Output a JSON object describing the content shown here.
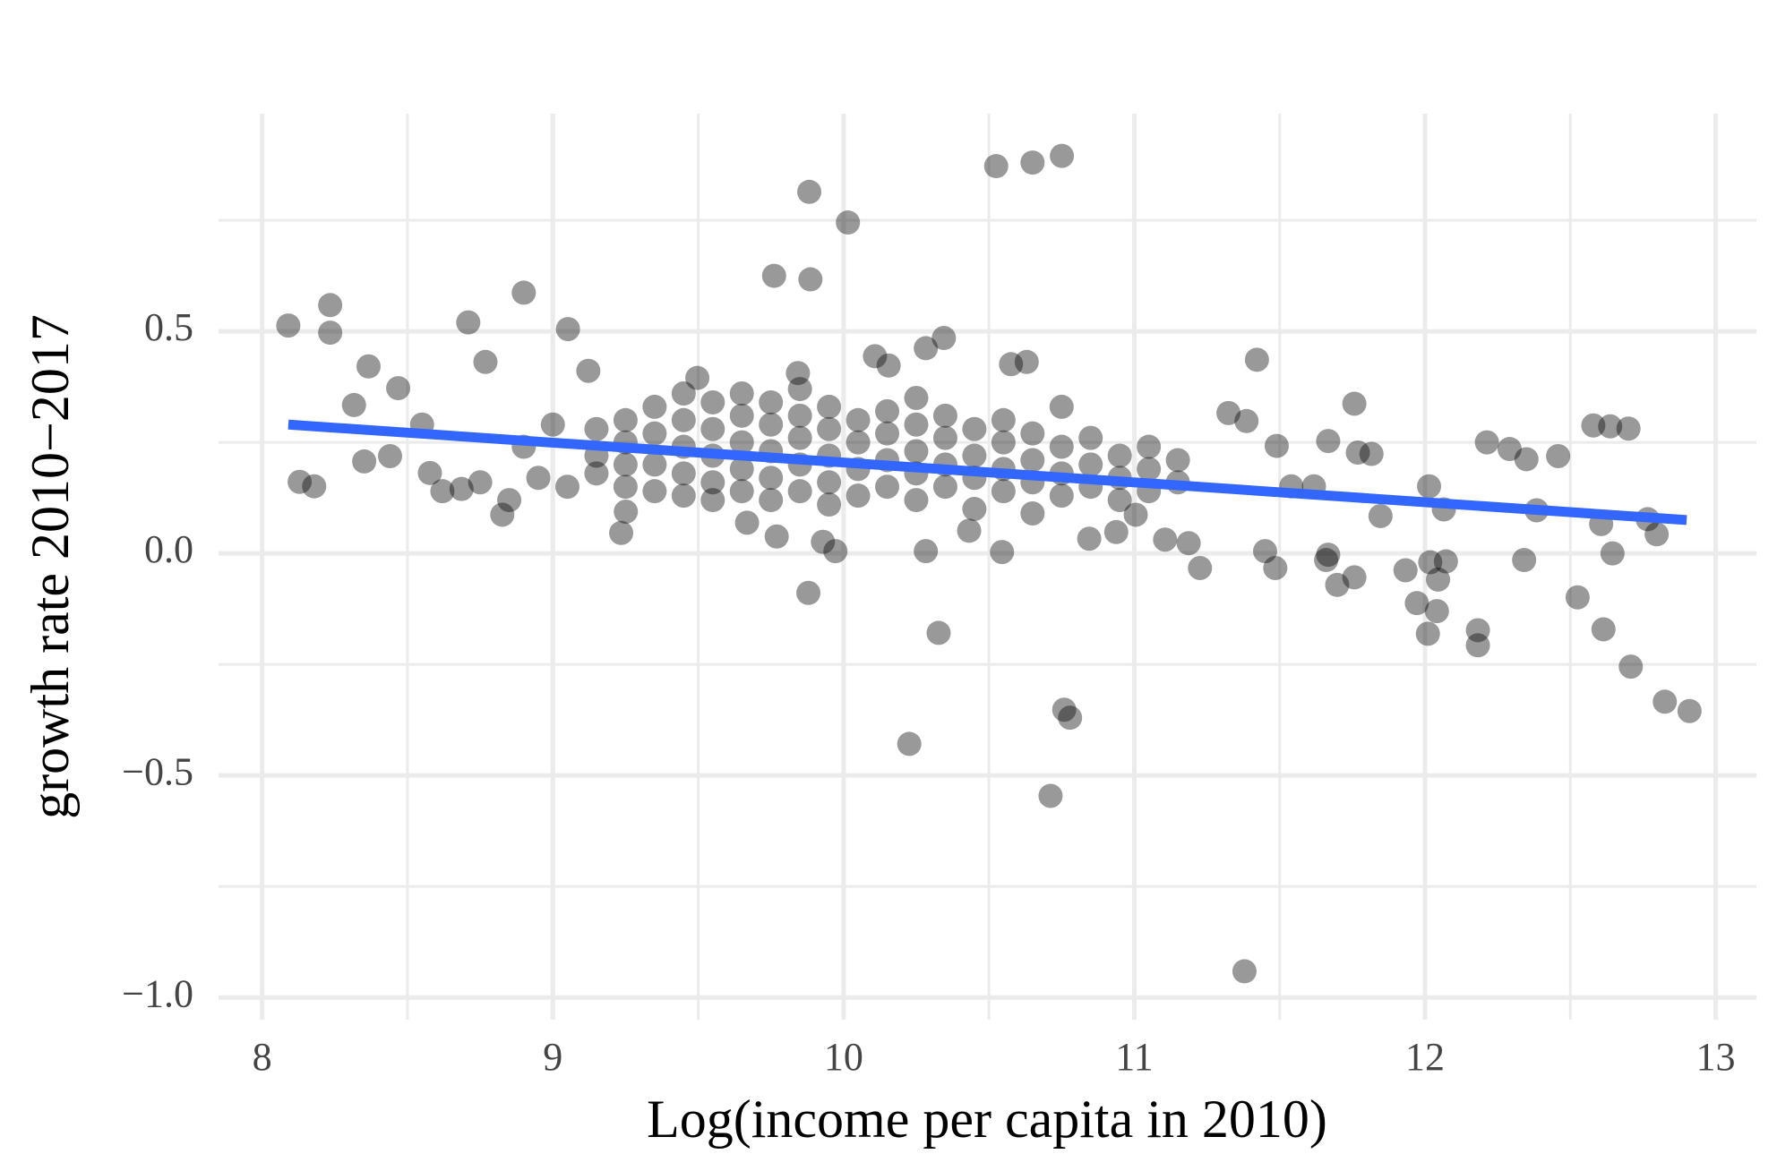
{
  "chart_data": {
    "type": "scatter",
    "x_label": "Log(income per capita in 2010)",
    "y_label": "growth rate 2010−2017",
    "xlim": [
      7.85,
      13.14
    ],
    "ylim": [
      -1.05,
      0.99
    ],
    "xticks": [
      8,
      9,
      10,
      11,
      12,
      13
    ],
    "yticks": [
      {
        "value": -1,
        "label": "−1.0"
      },
      {
        "value": -0.5,
        "label": "−0.5"
      },
      {
        "value": 0,
        "label": "0.0"
      },
      0.5
    ],
    "x_minor_grid": [
      8.5,
      9.5,
      10.5,
      11.5,
      12.5
    ],
    "y_minor_grid": [
      -0.75,
      -0.25,
      0.25,
      0.75
    ],
    "grid": true,
    "series": [
      {
        "color": "#000000",
        "alpha": 0.4,
        "x": [
          10.525,
          10.65,
          10.751,
          9.882,
          10.015,
          9.761,
          9.886,
          8.09,
          8.234,
          8.234,
          8.709,
          8.9,
          9.052,
          8.366,
          8.768,
          9.122,
          8.316,
          8.468,
          8.129,
          8.179,
          8.351,
          8.44,
          8.577,
          8.686,
          8.826,
          9.235,
          9.879,
          10.327,
          10.226,
          10.759,
          10.779,
          10.712,
          11.379,
          11.422,
          11.324,
          11.757,
          12.213,
          12.291,
          12.349,
          12.458,
          12.579,
          12.637,
          12.7,
          12.384,
          12.606,
          12.645,
          12.341,
          12.525,
          12.614,
          12.708,
          12.825,
          12.91,
          12.766,
          12.797,
          12.014,
          12.065,
          11.847,
          11.933,
          11.972,
          12.01,
          12.041,
          12.018,
          12.072,
          12.045,
          12.182,
          12.182,
          11.667,
          11.698,
          11.757,
          11.66,
          11.45,
          11.485,
          11.54,
          11.618,
          11.667,
          11.769,
          11.816,
          11.49,
          11.386,
          11.226,
          11.187,
          11.106,
          11.005,
          10.938,
          10.845,
          10.545,
          10.432,
          10.283,
          9.972,
          9.929,
          9.77,
          9.668,
          9.251,
          10.283,
          10.345,
          10.108,
          10.155,
          10.576,
          10.63,
          9.843,
          9.497,
          9.15,
          9.15,
          9.15,
          9.25,
          9.25,
          9.25,
          9.25,
          9.35,
          9.35,
          9.35,
          9.35,
          9.45,
          9.45,
          9.45,
          9.45,
          9.45,
          9.55,
          9.55,
          9.55,
          9.55,
          9.55,
          9.65,
          9.65,
          9.65,
          9.65,
          9.65,
          9.75,
          9.75,
          9.75,
          9.75,
          9.75,
          9.85,
          9.85,
          9.85,
          9.85,
          9.85,
          9.95,
          9.95,
          9.95,
          9.95,
          9.95,
          10.05,
          10.05,
          10.05,
          10.05,
          10.15,
          10.15,
          10.15,
          10.15,
          10.25,
          10.25,
          10.25,
          10.25,
          10.25,
          10.35,
          10.35,
          10.35,
          10.35,
          10.45,
          10.45,
          10.45,
          10.45,
          10.55,
          10.55,
          10.55,
          10.55,
          10.65,
          10.65,
          10.65,
          10.65,
          10.75,
          10.75,
          10.75,
          10.75,
          10.85,
          10.85,
          10.85,
          10.95,
          10.95,
          10.95,
          11.05,
          11.05,
          11.05,
          11.15,
          11.15,
          8.55,
          8.62,
          8.75,
          8.85,
          8.9,
          8.95,
          9.0,
          9.05
        ],
        "values": [
          0.872,
          0.88,
          0.895,
          0.814,
          0.745,
          0.625,
          0.617,
          0.513,
          0.559,
          0.497,
          0.52,
          0.587,
          0.505,
          0.421,
          0.431,
          0.411,
          0.334,
          0.372,
          0.161,
          0.151,
          0.207,
          0.219,
          0.181,
          0.145,
          0.087,
          0.046,
          -0.089,
          -0.179,
          -0.429,
          -0.352,
          -0.37,
          -0.546,
          -0.941,
          0.436,
          0.316,
          0.337,
          0.25,
          0.235,
          0.212,
          0.219,
          0.288,
          0.286,
          0.281,
          0.097,
          0.066,
          0,
          -0.015,
          -0.099,
          -0.171,
          -0.255,
          -0.334,
          -0.355,
          0.077,
          0.043,
          0.151,
          0.099,
          0.084,
          -0.038,
          -0.112,
          -0.181,
          -0.13,
          -0.02,
          -0.018,
          -0.059,
          -0.173,
          -0.207,
          -0.003,
          -0.071,
          -0.054,
          -0.015,
          0.005,
          -0.033,
          0.151,
          0.151,
          0.253,
          0.227,
          0.224,
          0.242,
          0.298,
          -0.033,
          0.023,
          0.031,
          0.087,
          0.048,
          0.033,
          0.003,
          0.051,
          0.005,
          0.005,
          0.026,
          0.038,
          0.069,
          0.094,
          0.462,
          0.485,
          0.444,
          0.423,
          0.426,
          0.431,
          0.406,
          0.395,
          0.22,
          0.18,
          0.28,
          0.25,
          0.15,
          0.2,
          0.3,
          0.27,
          0.2,
          0.14,
          0.33,
          0.24,
          0.18,
          0.3,
          0.13,
          0.36,
          0.22,
          0.28,
          0.16,
          0.34,
          0.12,
          0.25,
          0.19,
          0.31,
          0.14,
          0.36,
          0.23,
          0.29,
          0.17,
          0.12,
          0.34,
          0.26,
          0.2,
          0.31,
          0.14,
          0.37,
          0.22,
          0.28,
          0.16,
          0.11,
          0.33,
          0.25,
          0.19,
          0.3,
          0.13,
          0.21,
          0.27,
          0.15,
          0.32,
          0.23,
          0.18,
          0.29,
          0.12,
          0.35,
          0.2,
          0.26,
          0.15,
          0.31,
          0.22,
          0.17,
          0.28,
          0.1,
          0.19,
          0.25,
          0.14,
          0.3,
          0.21,
          0.16,
          0.27,
          0.09,
          0.18,
          0.24,
          0.13,
          0.33,
          0.2,
          0.15,
          0.26,
          0.17,
          0.22,
          0.12,
          0.19,
          0.14,
          0.24,
          0.16,
          0.21,
          0.29,
          0.14,
          0.16,
          0.12,
          0.24,
          0.17,
          0.29,
          0.15
        ]
      }
    ],
    "trend_line": {
      "color": "#3366ff",
      "x": [
        8.09,
        12.9
      ],
      "values": [
        0.29,
        0.075
      ]
    }
  }
}
